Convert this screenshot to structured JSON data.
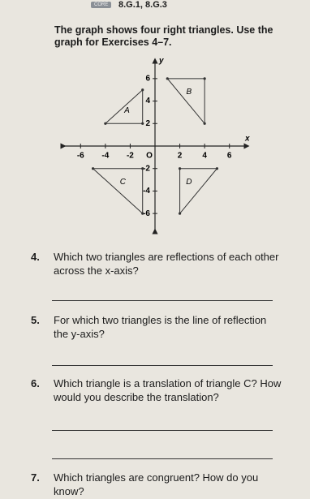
{
  "header": {
    "badge": "CORE",
    "standards": "8.G.1, 8.G.3"
  },
  "intro": "The graph shows four right triangles. Use the graph for Exercises 4–7.",
  "graph": {
    "x_label": "x",
    "y_label": "y",
    "origin_label": "O",
    "xlim": [
      -7,
      7
    ],
    "ylim": [
      -7,
      7
    ],
    "xticks": [
      -6,
      -4,
      -2,
      2,
      4,
      6
    ],
    "yticks": [
      6,
      4,
      2,
      -2,
      -4,
      -6
    ],
    "triangles": [
      {
        "label": "A",
        "x": [
          -4,
          -1,
          -1
        ],
        "y": [
          2,
          2,
          5
        ]
      },
      {
        "label": "B",
        "x": [
          1,
          4,
          4
        ],
        "y": [
          6,
          6,
          2
        ]
      },
      {
        "label": "C",
        "x": [
          -5,
          -1,
          -1
        ],
        "y": [
          -2,
          -2,
          -6
        ]
      },
      {
        "label": "D",
        "x": [
          2,
          5,
          2
        ],
        "y": [
          -2,
          -2,
          -6
        ]
      }
    ]
  },
  "questions": [
    {
      "number": "4.",
      "text": "Which two triangles are reflections of each other across the x-axis?"
    },
    {
      "number": "5.",
      "text": "For which two triangles is the line of reflection the y-axis?"
    },
    {
      "number": "6.",
      "text": "Which triangle is a translation of triangle C? How would you describe the translation?"
    },
    {
      "number": "7.",
      "text": "Which triangles are congruent? How do you know?"
    }
  ]
}
